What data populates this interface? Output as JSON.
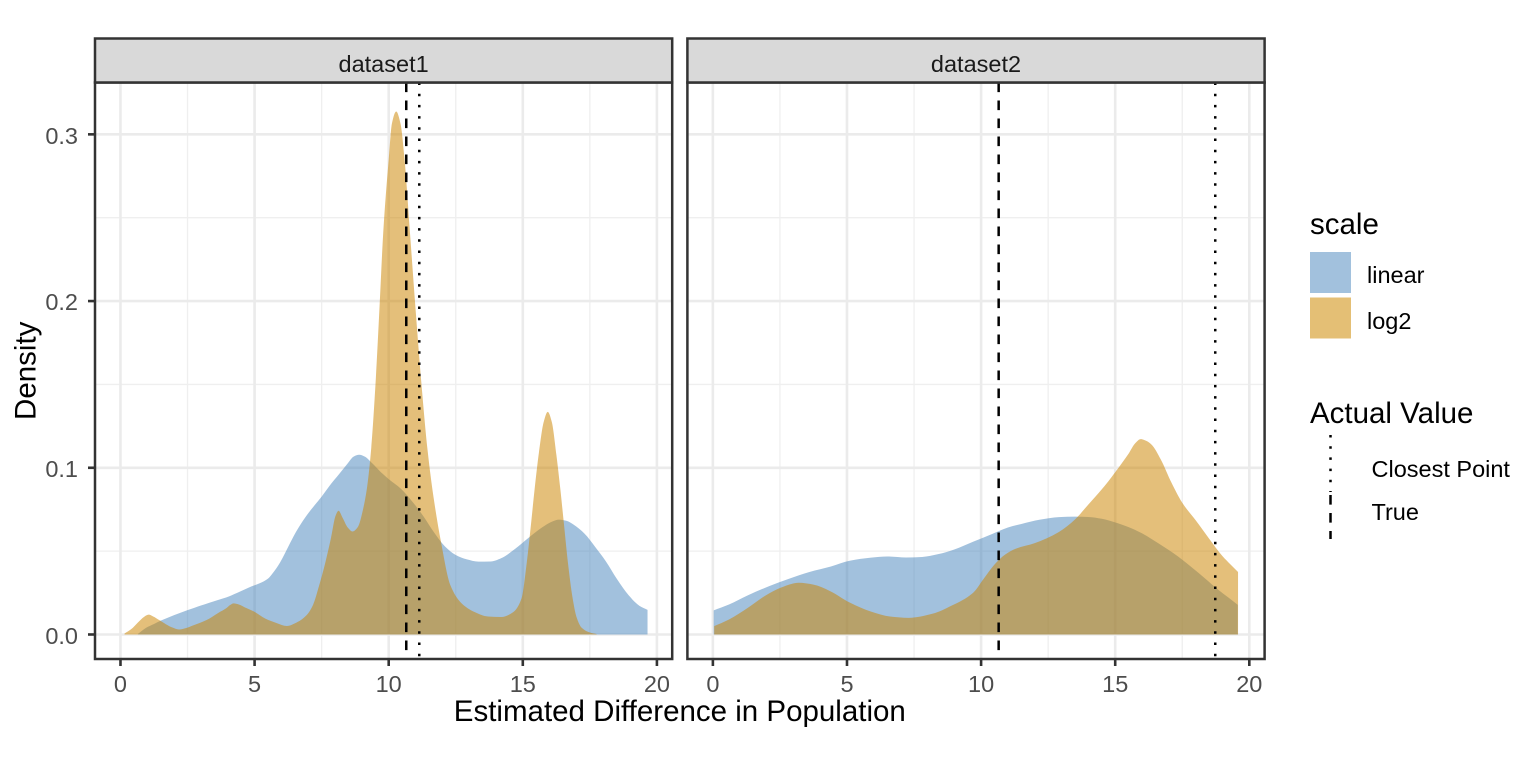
{
  "figure": {
    "background": "#ffffff",
    "panel_background": "#ffffff",
    "panel_border_color": "#333333",
    "grid_major_color": "#ebebeb",
    "grid_minor_color": "#efefef",
    "strip_fill": "#d9d9d9",
    "strip_text_color": "#1a1a1a",
    "tick_color": "#333333",
    "tick_label_color": "#4d4d4d",
    "title_color": "#000000"
  },
  "legend": {
    "fill_group": {
      "title": "scale",
      "items": [
        {
          "label": "linear",
          "swatch_color": "#a2c1dd"
        },
        {
          "label": "log2",
          "swatch_color": "#e4bf75"
        }
      ]
    },
    "line_group": {
      "title": "Actual Value",
      "items": [
        {
          "label": "Closest Point",
          "linetype": "dotted"
        },
        {
          "label": "True",
          "linetype": "dashed"
        }
      ]
    }
  },
  "chart_data": {
    "type": "area",
    "subtype": "density",
    "title": "",
    "xlabel": "Estimated Difference in Population",
    "ylabel": "Density",
    "xlim": [
      -0.95,
      20.57
    ],
    "ylim": [
      -0.0147,
      0.3311
    ],
    "x_major_ticks": [
      0,
      5,
      10,
      15,
      20
    ],
    "x_tick_labels": [
      "0",
      "5",
      "10",
      "15",
      "20"
    ],
    "x_minor_ticks": [
      2.5,
      7.5,
      12.5,
      17.5
    ],
    "y_major_ticks": [
      0,
      0.1,
      0.2,
      0.3
    ],
    "y_tick_labels": [
      "0.0",
      "0.1",
      "0.2",
      "0.3"
    ],
    "y_minor_ticks": [
      0.05,
      0.15,
      0.25
    ],
    "grid": true,
    "legend_position": "right",
    "series_style": [
      {
        "name": "linear",
        "fill": "#4583bb",
        "fill_opacity": 0.5,
        "composite_on_white": "#a2c1dd"
      },
      {
        "name": "log2",
        "fill": "#cb8400",
        "fill_opacity": 0.52,
        "composite_on_white": "#e4bf75"
      }
    ],
    "vline_style": {
      "color": "#000000",
      "width": 2.5,
      "dashed_pattern": [
        9.6,
        8.4
      ],
      "dotted_pattern": [
        2.5,
        8.7
      ]
    },
    "facets": [
      {
        "label": "dataset1",
        "vlines": [
          {
            "name": "True",
            "x": 10.655,
            "linetype": "dashed"
          },
          {
            "name": "Closest Point",
            "x": 11.14,
            "linetype": "dotted"
          }
        ],
        "series": [
          {
            "name": "linear",
            "points": [
              [
                0.65,
                0.0004
              ],
              [
                0.95,
                0.004
              ],
              [
                1.25,
                0.0063
              ],
              [
                1.5,
                0.0083
              ],
              [
                1.75,
                0.01
              ],
              [
                2.0,
                0.0116
              ],
              [
                2.25,
                0.0131
              ],
              [
                2.5,
                0.0146
              ],
              [
                2.75,
                0.016
              ],
              [
                3.0,
                0.0174
              ],
              [
                3.3,
                0.019
              ],
              [
                3.65,
                0.0208
              ],
              [
                3.95,
                0.0223
              ],
              [
                4.35,
                0.025
              ],
              [
                4.8,
                0.0283
              ],
              [
                5.2,
                0.0308
              ],
              [
                5.5,
                0.0335
              ],
              [
                5.65,
                0.0362
              ],
              [
                5.95,
                0.0432
              ],
              [
                6.25,
                0.0525
              ],
              [
                6.55,
                0.0617
              ],
              [
                6.9,
                0.0705
              ],
              [
                7.2,
                0.0768
              ],
              [
                7.5,
                0.0827
              ],
              [
                7.8,
                0.0893
              ],
              [
                8.15,
                0.0962
              ],
              [
                8.45,
                0.1022
              ],
              [
                8.7,
                0.1068
              ],
              [
                8.9,
                0.1078
              ],
              [
                9.1,
                0.1068
              ],
              [
                9.4,
                0.1025
              ],
              [
                9.7,
                0.0975
              ],
              [
                10.0,
                0.0932
              ],
              [
                10.45,
                0.0875
              ],
              [
                10.9,
                0.0793
              ],
              [
                11.3,
                0.0708
              ],
              [
                11.7,
                0.061
              ],
              [
                12.1,
                0.0528
              ],
              [
                12.5,
                0.0477
              ],
              [
                12.9,
                0.0451
              ],
              [
                13.35,
                0.0437
              ],
              [
                13.8,
                0.0438
              ],
              [
                14.2,
                0.0458
              ],
              [
                14.7,
                0.0512
              ],
              [
                15.2,
                0.0578
              ],
              [
                15.7,
                0.064
              ],
              [
                16.1,
                0.0678
              ],
              [
                16.35,
                0.0689
              ],
              [
                16.62,
                0.0682
              ],
              [
                16.9,
                0.0658
              ],
              [
                17.3,
                0.0605
              ],
              [
                17.7,
                0.0525
              ],
              [
                18.1,
                0.0438
              ],
              [
                18.5,
                0.0335
              ],
              [
                18.95,
                0.0235
              ],
              [
                19.35,
                0.0172
              ],
              [
                19.65,
                0.0148
              ]
            ]
          },
          {
            "name": "log2",
            "points": [
              [
                0.15,
                0.0006
              ],
              [
                0.4,
                0.0032
              ],
              [
                0.65,
                0.0072
              ],
              [
                0.88,
                0.0106
              ],
              [
                1.05,
                0.0119
              ],
              [
                1.22,
                0.0108
              ],
              [
                1.45,
                0.0086
              ],
              [
                1.7,
                0.0061
              ],
              [
                1.95,
                0.0041
              ],
              [
                2.18,
                0.003
              ],
              [
                2.45,
                0.0039
              ],
              [
                2.7,
                0.0054
              ],
              [
                3.2,
                0.0086
              ],
              [
                3.65,
                0.013
              ],
              [
                3.95,
                0.0158
              ],
              [
                4.08,
                0.0176
              ],
              [
                4.22,
                0.0187
              ],
              [
                4.4,
                0.0181
              ],
              [
                4.7,
                0.0158
              ],
              [
                4.95,
                0.014
              ],
              [
                5.4,
                0.0095
              ],
              [
                5.85,
                0.0067
              ],
              [
                6.2,
                0.0051
              ],
              [
                6.6,
                0.0075
              ],
              [
                6.95,
                0.0118
              ],
              [
                7.18,
                0.0178
              ],
              [
                7.4,
                0.029
              ],
              [
                7.62,
                0.042
              ],
              [
                7.85,
                0.058
              ],
              [
                8.02,
                0.0712
              ],
              [
                8.13,
                0.0742
              ],
              [
                8.28,
                0.07
              ],
              [
                8.48,
                0.064
              ],
              [
                8.65,
                0.0618
              ],
              [
                8.85,
                0.0645
              ],
              [
                9.05,
                0.0755
              ],
              [
                9.2,
                0.089
              ],
              [
                9.35,
                0.112
              ],
              [
                9.52,
                0.1535
              ],
              [
                9.66,
                0.197
              ],
              [
                9.8,
                0.242
              ],
              [
                10.0,
                0.285
              ],
              [
                10.12,
                0.3065
              ],
              [
                10.28,
                0.3137
              ],
              [
                10.44,
                0.3065
              ],
              [
                10.58,
                0.287
              ],
              [
                10.8,
                0.2395
              ],
              [
                11.0,
                0.1955
              ],
              [
                11.22,
                0.1505
              ],
              [
                11.45,
                0.1105
              ],
              [
                11.68,
                0.0815
              ],
              [
                11.95,
                0.0555
              ],
              [
                12.3,
                0.0295
              ],
              [
                12.7,
                0.019
              ],
              [
                13.2,
                0.0135
              ],
              [
                13.7,
                0.0108
              ],
              [
                14.2,
                0.0105
              ],
              [
                14.65,
                0.0135
              ],
              [
                14.95,
                0.0215
              ],
              [
                15.15,
                0.0434
              ],
              [
                15.3,
                0.0653
              ],
              [
                15.44,
                0.0871
              ],
              [
                15.6,
                0.109
              ],
              [
                15.78,
                0.1275
              ],
              [
                15.93,
                0.1335
              ],
              [
                16.08,
                0.1275
              ],
              [
                16.25,
                0.108
              ],
              [
                16.4,
                0.0871
              ],
              [
                16.54,
                0.0653
              ],
              [
                16.68,
                0.0434
              ],
              [
                16.86,
                0.0215
              ],
              [
                17.0,
                0.0106
              ],
              [
                17.2,
                0.004
              ],
              [
                17.5,
                0.0012
              ],
              [
                17.75,
                0.0003
              ]
            ]
          }
        ]
      },
      {
        "label": "dataset2",
        "vlines": [
          {
            "name": "True",
            "x": 10.655,
            "linetype": "dashed"
          },
          {
            "name": "Closest Point",
            "x": 18.73,
            "linetype": "dotted"
          }
        ],
        "series": [
          {
            "name": "linear",
            "points": [
              [
                0.03,
                0.0145
              ],
              [
                0.6,
                0.018
              ],
              [
                1.3,
                0.0235
              ],
              [
                2.1,
                0.029
              ],
              [
                2.8,
                0.0332
              ],
              [
                3.6,
                0.0375
              ],
              [
                4.4,
                0.0408
              ],
              [
                5.1,
                0.0442
              ],
              [
                5.9,
                0.0461
              ],
              [
                6.5,
                0.0468
              ],
              [
                7.2,
                0.0462
              ],
              [
                7.8,
                0.0465
              ],
              [
                8.4,
                0.0482
              ],
              [
                9.0,
                0.051
              ],
              [
                9.7,
                0.0556
              ],
              [
                10.4,
                0.0602
              ],
              [
                11.0,
                0.0642
              ],
              [
                11.5,
                0.0663
              ],
              [
                12.2,
                0.0689
              ],
              [
                12.9,
                0.0704
              ],
              [
                13.5,
                0.0707
              ],
              [
                14.0,
                0.0705
              ],
              [
                14.5,
                0.0694
              ],
              [
                15.1,
                0.0667
              ],
              [
                15.9,
                0.0615
              ],
              [
                16.6,
                0.0548
              ],
              [
                17.35,
                0.0467
              ],
              [
                18.1,
                0.037
              ],
              [
                18.8,
                0.0274
              ],
              [
                19.25,
                0.0218
              ],
              [
                19.57,
                0.0178
              ]
            ]
          },
          {
            "name": "log2",
            "points": [
              [
                0.05,
                0.005
              ],
              [
                0.6,
                0.009
              ],
              [
                1.3,
                0.016
              ],
              [
                2.1,
                0.0247
              ],
              [
                2.65,
                0.0288
              ],
              [
                3.2,
                0.031
              ],
              [
                3.75,
                0.0299
              ],
              [
                4.35,
                0.0262
              ],
              [
                5.1,
                0.0192
              ],
              [
                5.9,
                0.0137
              ],
              [
                6.6,
                0.0108
              ],
              [
                7.3,
                0.01
              ],
              [
                8.2,
                0.0125
              ],
              [
                8.9,
                0.0173
              ],
              [
                9.7,
                0.025
              ],
              [
                10.1,
                0.0335
              ],
              [
                10.5,
                0.042
              ],
              [
                10.9,
                0.048
              ],
              [
                11.3,
                0.0515
              ],
              [
                12.0,
                0.0548
              ],
              [
                12.9,
                0.0615
              ],
              [
                13.5,
                0.069
              ],
              [
                14.0,
                0.078
              ],
              [
                14.6,
                0.089
              ],
              [
                15.1,
                0.0995
              ],
              [
                15.5,
                0.1085
              ],
              [
                15.75,
                0.1148
              ],
              [
                15.95,
                0.1172
              ],
              [
                16.15,
                0.1162
              ],
              [
                16.35,
                0.114
              ],
              [
                16.7,
                0.105
              ],
              [
                17.1,
                0.091
              ],
              [
                17.5,
                0.079
              ],
              [
                18.0,
                0.0685
              ],
              [
                18.5,
                0.0575
              ],
              [
                19.0,
                0.047
              ],
              [
                19.3,
                0.042
              ],
              [
                19.58,
                0.0375
              ]
            ]
          }
        ]
      }
    ]
  }
}
